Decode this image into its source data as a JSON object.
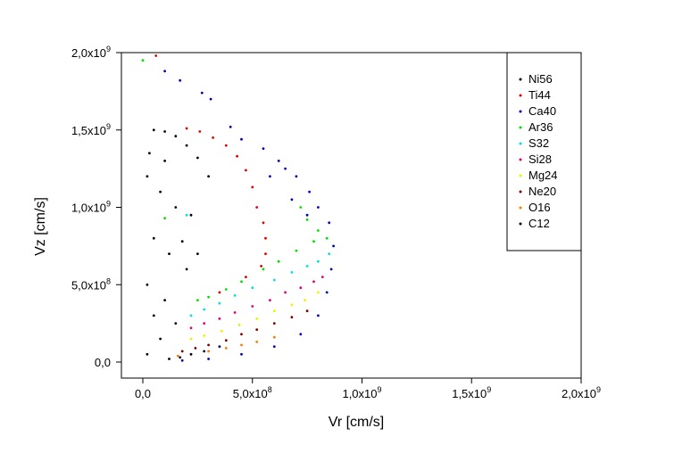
{
  "chart_data": {
    "type": "scatter",
    "xlabel": "Vr [cm/s]",
    "ylabel": "Vz [cm/s]",
    "xlim": [
      -100000000.0,
      2000000000.0
    ],
    "ylim": [
      -80000000.0,
      2000000000.0
    ],
    "x_ticks": [
      {
        "value": 0,
        "mantissa": "0,0",
        "exp": ""
      },
      {
        "value": 500000000.0,
        "mantissa": "5,0x10",
        "exp": "8"
      },
      {
        "value": 1000000000.0,
        "mantissa": "1,0x10",
        "exp": "9"
      },
      {
        "value": 1500000000.0,
        "mantissa": "1,5x10",
        "exp": "9"
      },
      {
        "value": 2000000000.0,
        "mantissa": "2,0x10",
        "exp": "9"
      }
    ],
    "y_ticks": [
      {
        "value": 0,
        "mantissa": "0,0",
        "exp": ""
      },
      {
        "value": 500000000.0,
        "mantissa": "5,0x10",
        "exp": "8"
      },
      {
        "value": 1000000000.0,
        "mantissa": "1,0x10",
        "exp": "9"
      },
      {
        "value": 1500000000.0,
        "mantissa": "1,5x10",
        "exp": "9"
      },
      {
        "value": 2000000000.0,
        "mantissa": "2,0x10",
        "exp": "9"
      }
    ],
    "legend_position": "top-right",
    "grid": false,
    "series": [
      {
        "name": "Ni56",
        "color": "#000000",
        "points": [
          [
            50000000.0,
            1500000000.0
          ],
          [
            100000000.0,
            1490000000.0
          ],
          [
            150000000.0,
            1460000000.0
          ],
          [
            200000000.0,
            1400000000.0
          ],
          [
            250000000.0,
            1320000000.0
          ],
          [
            300000000.0,
            1200000000.0
          ],
          [
            20000000.0,
            1200000000.0
          ],
          [
            80000000.0,
            1100000000.0
          ],
          [
            150000000.0,
            1000000000.0
          ],
          [
            220000000.0,
            950000000.0
          ],
          [
            50000000.0,
            800000000.0
          ],
          [
            120000000.0,
            700000000.0
          ],
          [
            200000000.0,
            600000000.0
          ],
          [
            20000000.0,
            500000000.0
          ],
          [
            100000000.0,
            400000000.0
          ],
          [
            50000000.0,
            300000000.0
          ],
          [
            150000000.0,
            250000000.0
          ],
          [
            80000000.0,
            150000000.0
          ],
          [
            20000000.0,
            50000000.0
          ],
          [
            120000000.0,
            20000000.0
          ],
          [
            180000000.0,
            780000000.0
          ],
          [
            250000000.0,
            700000000.0
          ],
          [
            30000000.0,
            1350000000.0
          ],
          [
            100000000.0,
            1300000000.0
          ]
        ]
      },
      {
        "name": "Ti44",
        "color": "#e00000",
        "points": [
          [
            60000000.0,
            1980000000.0
          ],
          [
            200000000.0,
            1510000000.0
          ],
          [
            260000000.0,
            1490000000.0
          ],
          [
            320000000.0,
            1450000000.0
          ],
          [
            380000000.0,
            1400000000.0
          ],
          [
            430000000.0,
            1330000000.0
          ],
          [
            470000000.0,
            1240000000.0
          ],
          [
            500000000.0,
            1130000000.0
          ],
          [
            520000000.0,
            1000000000.0
          ],
          [
            550000000.0,
            900000000.0
          ],
          [
            560000000.0,
            800000000.0
          ],
          [
            560000000.0,
            700000000.0
          ],
          [
            540000000.0,
            620000000.0
          ],
          [
            470000000.0,
            550000000.0
          ],
          [
            350000000.0,
            450000000.0
          ]
        ]
      },
      {
        "name": "Ca40",
        "color": "#0000c0",
        "points": [
          [
            100000000.0,
            1880000000.0
          ],
          [
            170000000.0,
            1820000000.0
          ],
          [
            270000000.0,
            1740000000.0
          ],
          [
            310000000.0,
            1700000000.0
          ],
          [
            400000000.0,
            1520000000.0
          ],
          [
            450000000.0,
            1440000000.0
          ],
          [
            550000000.0,
            1380000000.0
          ],
          [
            620000000.0,
            1300000000.0
          ],
          [
            700000000.0,
            1200000000.0
          ],
          [
            760000000.0,
            1100000000.0
          ],
          [
            800000000.0,
            1000000000.0
          ],
          [
            850000000.0,
            900000000.0
          ],
          [
            870000000.0,
            750000000.0
          ],
          [
            860000000.0,
            600000000.0
          ],
          [
            840000000.0,
            450000000.0
          ],
          [
            800000000.0,
            300000000.0
          ],
          [
            720000000.0,
            180000000.0
          ],
          [
            600000000.0,
            100000000.0
          ],
          [
            450000000.0,
            50000000.0
          ],
          [
            300000000.0,
            20000000.0
          ],
          [
            180000000.0,
            10000000.0
          ],
          [
            650000000.0,
            1250000000.0
          ],
          [
            580000000.0,
            1200000000.0
          ],
          [
            680000000.0,
            1050000000.0
          ],
          [
            750000000.0,
            950000000.0
          ]
        ]
      },
      {
        "name": "Ar36",
        "color": "#00e000",
        "points": [
          [
            0.0,
            1950000000.0
          ],
          [
            100000000.0,
            930000000.0
          ],
          [
            720000000.0,
            1000000000.0
          ],
          [
            750000000.0,
            920000000.0
          ],
          [
            800000000.0,
            850000000.0
          ],
          [
            840000000.0,
            800000000.0
          ],
          [
            780000000.0,
            780000000.0
          ],
          [
            700000000.0,
            720000000.0
          ],
          [
            620000000.0,
            650000000.0
          ],
          [
            550000000.0,
            600000000.0
          ],
          [
            450000000.0,
            520000000.0
          ],
          [
            380000000.0,
            470000000.0
          ],
          [
            300000000.0,
            420000000.0
          ],
          [
            250000000.0,
            400000000.0
          ]
        ]
      },
      {
        "name": "S32",
        "color": "#00e0e0",
        "points": [
          [
            850000000.0,
            700000000.0
          ],
          [
            800000000.0,
            650000000.0
          ],
          [
            750000000.0,
            620000000.0
          ],
          [
            680000000.0,
            580000000.0
          ],
          [
            600000000.0,
            530000000.0
          ],
          [
            500000000.0,
            480000000.0
          ],
          [
            420000000.0,
            430000000.0
          ],
          [
            350000000.0,
            380000000.0
          ],
          [
            280000000.0,
            340000000.0
          ],
          [
            220000000.0,
            300000000.0
          ],
          [
            200000000.0,
            950000000.0
          ]
        ]
      },
      {
        "name": "Si28",
        "color": "#e0007a",
        "points": [
          [
            820000000.0,
            550000000.0
          ],
          [
            780000000.0,
            520000000.0
          ],
          [
            720000000.0,
            480000000.0
          ],
          [
            650000000.0,
            450000000.0
          ],
          [
            580000000.0,
            400000000.0
          ],
          [
            500000000.0,
            360000000.0
          ],
          [
            420000000.0,
            320000000.0
          ],
          [
            350000000.0,
            280000000.0
          ],
          [
            280000000.0,
            250000000.0
          ],
          [
            220000000.0,
            220000000.0
          ]
        ]
      },
      {
        "name": "Mg24",
        "color": "#f0f000",
        "points": [
          [
            800000000.0,
            450000000.0
          ],
          [
            740000000.0,
            400000000.0
          ],
          [
            680000000.0,
            370000000.0
          ],
          [
            600000000.0,
            330000000.0
          ],
          [
            520000000.0,
            280000000.0
          ],
          [
            440000000.0,
            240000000.0
          ],
          [
            360000000.0,
            200000000.0
          ],
          [
            280000000.0,
            170000000.0
          ],
          [
            220000000.0,
            150000000.0
          ]
        ]
      },
      {
        "name": "Ne20",
        "color": "#800000",
        "points": [
          [
            750000000.0,
            330000000.0
          ],
          [
            680000000.0,
            290000000.0
          ],
          [
            600000000.0,
            250000000.0
          ],
          [
            520000000.0,
            210000000.0
          ],
          [
            450000000.0,
            180000000.0
          ],
          [
            380000000.0,
            140000000.0
          ],
          [
            300000000.0,
            110000000.0
          ],
          [
            240000000.0,
            90000000.0
          ],
          [
            180000000.0,
            70000000.0
          ]
        ]
      },
      {
        "name": "O16",
        "color": "#f08000",
        "points": [
          [
            600000000.0,
            160000000.0
          ],
          [
            520000000.0,
            130000000.0
          ],
          [
            450000000.0,
            110000000.0
          ],
          [
            380000000.0,
            90000000.0
          ],
          [
            300000000.0,
            70000000.0
          ],
          [
            220000000.0,
            50000000.0
          ],
          [
            160000000.0,
            40000000.0
          ]
        ]
      },
      {
        "name": "C12",
        "color": "#000040",
        "points": [
          [
            350000000.0,
            100000000.0
          ],
          [
            280000000.0,
            70000000.0
          ],
          [
            220000000.0,
            50000000.0
          ],
          [
            170000000.0,
            30000000.0
          ]
        ]
      }
    ]
  }
}
